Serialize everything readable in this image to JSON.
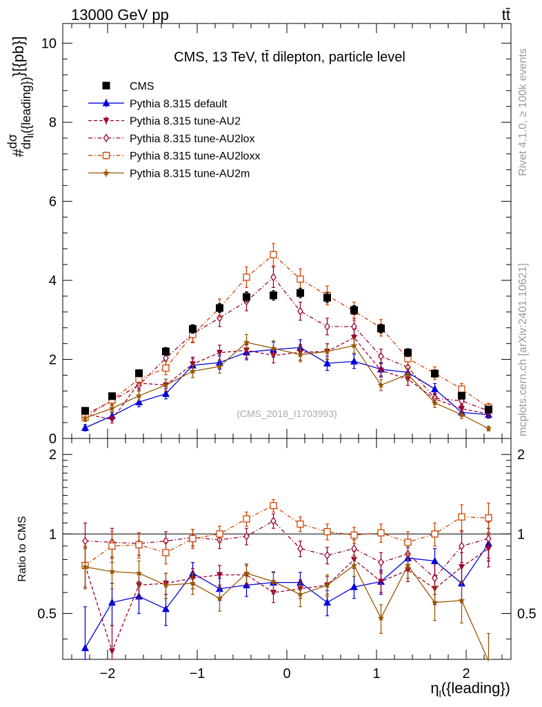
{
  "header": {
    "left": "13000 GeV pp",
    "right": "tt̄"
  },
  "side": {
    "rivet": "Rivet 4.1.0, ≥ 100k events",
    "mcplots": "mcplots.cern.ch [arXiv:2401.10621]"
  },
  "chart_data": {
    "type": "line",
    "title": "CMS, 13 TeV, tt̄ dilepton, particle level",
    "watermark": "(CMS_2018_I1703993)",
    "xlabel": "η_l({leading})",
    "ylabel": "#dσ/dη_l({leading})}[{pb}]",
    "ratio_ylabel": "Ratio to CMS",
    "xlim": [
      -2.5,
      2.5
    ],
    "ylim": [
      0,
      10.5
    ],
    "ratio_ylim": [
      0.335,
      2.3
    ],
    "x_ticks": [
      -2,
      -1,
      0,
      1,
      2
    ],
    "x_tick_labels": [
      "−2",
      "−1",
      "0",
      "1",
      "2"
    ],
    "y_ticks": [
      0,
      2,
      4,
      6,
      8,
      10
    ],
    "y_tick_labels": [
      "0",
      "2",
      "4",
      "6",
      "8",
      "10"
    ],
    "ratio_ticks": [
      0.5,
      1,
      2
    ],
    "ratio_tick_labels": [
      "0.5",
      "1",
      "2"
    ],
    "x": [
      -2.25,
      -1.95,
      -1.65,
      -1.35,
      -1.05,
      -0.75,
      -0.45,
      -0.15,
      0.15,
      0.45,
      0.75,
      1.05,
      1.35,
      1.65,
      1.95,
      2.25
    ],
    "series": [
      {
        "name": "CMS",
        "color": "#000000",
        "marker": "square-filled",
        "line": "none",
        "values": [
          0.7,
          1.07,
          1.65,
          2.2,
          2.77,
          3.3,
          3.58,
          3.62,
          3.68,
          3.56,
          3.25,
          2.78,
          2.17,
          1.64,
          1.08,
          0.73
        ],
        "errors": [
          0.07,
          0.08,
          0.09,
          0.1,
          0.11,
          0.11,
          0.12,
          0.12,
          0.12,
          0.12,
          0.11,
          0.11,
          0.1,
          0.09,
          0.08,
          0.07
        ],
        "ratio": [],
        "ratio_errors": []
      },
      {
        "name": "Pythia 8.315 default",
        "color": "#0000dd",
        "marker": "triangle-up-filled",
        "line": "solid",
        "values": [
          0.27,
          0.57,
          0.92,
          1.13,
          1.85,
          1.92,
          2.18,
          2.25,
          2.3,
          1.9,
          1.95,
          1.75,
          1.67,
          1.25,
          0.66,
          0.6
        ],
        "errors": [
          0.08,
          0.1,
          0.12,
          0.13,
          0.17,
          0.17,
          0.19,
          0.19,
          0.2,
          0.18,
          0.18,
          0.17,
          0.16,
          0.14,
          0.1,
          0.09
        ],
        "ratio": [
          0.37,
          0.55,
          0.58,
          0.52,
          0.71,
          0.62,
          0.64,
          0.655,
          0.655,
          0.55,
          0.63,
          0.66,
          0.81,
          0.79,
          0.65,
          0.92
        ],
        "ratio_errors": [
          0.16,
          0.1,
          0.08,
          0.07,
          0.07,
          0.06,
          0.06,
          0.06,
          0.06,
          0.06,
          0.06,
          0.07,
          0.08,
          0.09,
          0.1,
          0.13
        ]
      },
      {
        "name": "Pythia 8.315 tune-AU2",
        "color": "#990033",
        "marker": "triangle-down-filled",
        "line": "dashed",
        "values": [
          0.62,
          0.48,
          1.4,
          1.35,
          1.88,
          2.17,
          2.23,
          2.1,
          2.18,
          2.2,
          2.55,
          1.72,
          1.5,
          1.0,
          0.75,
          0.62
        ],
        "errors": [
          0.1,
          0.09,
          0.15,
          0.15,
          0.18,
          0.19,
          0.2,
          0.19,
          0.2,
          0.2,
          0.21,
          0.17,
          0.16,
          0.13,
          0.11,
          0.1
        ],
        "ratio": [
          0.76,
          0.36,
          0.64,
          0.65,
          0.68,
          0.7,
          0.7,
          0.6,
          0.62,
          0.64,
          0.8,
          0.66,
          0.73,
          0.62,
          0.75,
          0.88
        ],
        "ratio_errors": [
          0.13,
          0.09,
          0.07,
          0.06,
          0.06,
          0.06,
          0.06,
          0.05,
          0.05,
          0.05,
          0.06,
          0.06,
          0.07,
          0.08,
          0.1,
          0.13
        ]
      },
      {
        "name": "Pythia 8.315 tune-AU2lox",
        "color": "#990033",
        "marker": "diamond-open",
        "line": "dashdot",
        "values": [
          0.6,
          0.95,
          1.35,
          2.03,
          2.65,
          3.05,
          3.47,
          4.08,
          3.22,
          2.83,
          2.83,
          2.08,
          1.8,
          1.02,
          0.95,
          0.7
        ],
        "errors": [
          0.1,
          0.12,
          0.15,
          0.18,
          0.21,
          0.22,
          0.24,
          0.26,
          0.23,
          0.21,
          0.21,
          0.18,
          0.17,
          0.13,
          0.12,
          0.1
        ],
        "ratio": [
          0.94,
          0.93,
          0.92,
          0.94,
          0.97,
          0.95,
          0.98,
          1.12,
          0.88,
          0.83,
          0.88,
          0.78,
          0.84,
          0.68,
          0.9,
          0.96
        ],
        "ratio_errors": [
          0.16,
          0.12,
          0.09,
          0.08,
          0.07,
          0.07,
          0.07,
          0.07,
          0.06,
          0.06,
          0.07,
          0.07,
          0.08,
          0.09,
          0.12,
          0.15
        ]
      },
      {
        "name": "Pythia 8.315 tune-AU2loxx",
        "color": "#cc4400",
        "marker": "square-open",
        "line": "dashdot",
        "values": [
          0.53,
          0.97,
          1.5,
          1.78,
          2.63,
          3.3,
          4.08,
          4.65,
          4.03,
          3.62,
          3.22,
          2.8,
          2.02,
          1.65,
          1.25,
          0.78
        ],
        "errors": [
          0.1,
          0.13,
          0.16,
          0.17,
          0.21,
          0.23,
          0.26,
          0.28,
          0.26,
          0.24,
          0.23,
          0.21,
          0.18,
          0.16,
          0.14,
          0.11
        ],
        "ratio": [
          0.76,
          0.9,
          0.91,
          0.85,
          0.96,
          1.0,
          1.14,
          1.28,
          1.09,
          1.02,
          0.99,
          1.01,
          0.93,
          1.0,
          1.16,
          1.15
        ],
        "ratio_errors": [
          0.14,
          0.12,
          0.1,
          0.08,
          0.08,
          0.07,
          0.07,
          0.07,
          0.07,
          0.07,
          0.07,
          0.08,
          0.09,
          0.1,
          0.13,
          0.16
        ]
      },
      {
        "name": "Pythia 8.315 tune-AU2m",
        "color": "#995500",
        "marker": "star-filled",
        "line": "solid",
        "values": [
          0.52,
          0.76,
          1.08,
          1.35,
          1.7,
          1.82,
          2.43,
          2.28,
          2.12,
          2.2,
          2.35,
          1.35,
          1.62,
          0.9,
          0.6,
          0.25
        ],
        "errors": [
          0.09,
          0.11,
          0.13,
          0.15,
          0.16,
          0.17,
          0.2,
          0.19,
          0.18,
          0.19,
          0.19,
          0.14,
          0.16,
          0.12,
          0.1,
          0.06
        ],
        "ratio": [
          0.75,
          0.72,
          0.71,
          0.64,
          0.65,
          0.57,
          0.71,
          0.66,
          0.59,
          0.64,
          0.76,
          0.48,
          0.76,
          0.55,
          0.56,
          0.33
        ],
        "ratio_errors": [
          0.13,
          0.1,
          0.08,
          0.07,
          0.06,
          0.06,
          0.06,
          0.06,
          0.06,
          0.06,
          0.07,
          0.06,
          0.08,
          0.08,
          0.1,
          0.09
        ]
      }
    ]
  }
}
